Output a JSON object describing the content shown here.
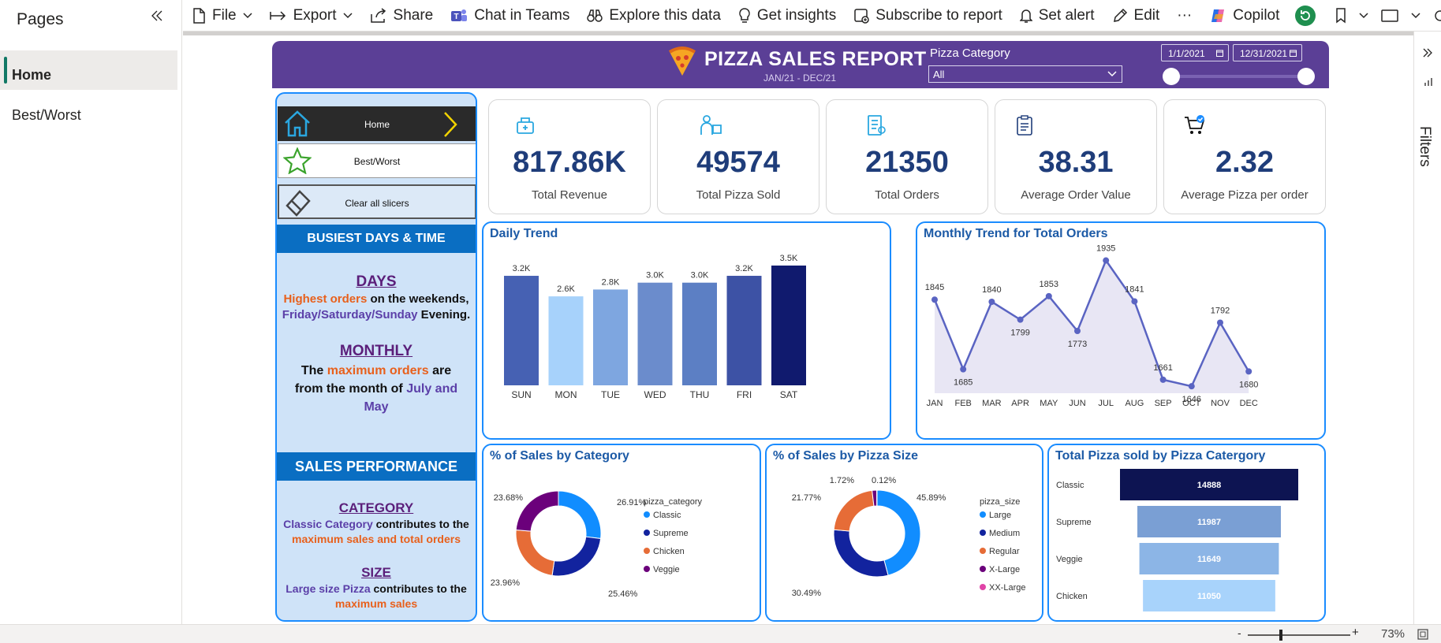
{
  "toolbar": {
    "file": "File",
    "export": "Export",
    "share": "Share",
    "chat": "Chat in Teams",
    "explore": "Explore this data",
    "insights": "Get insights",
    "subscribe": "Subscribe to report",
    "alert": "Set alert",
    "edit": "Edit",
    "more": "···",
    "copilot": "Copilot"
  },
  "pages": {
    "title": "Pages",
    "items": [
      {
        "label": "Home"
      },
      {
        "label": "Best/Worst"
      }
    ]
  },
  "filters": {
    "label": "Filters"
  },
  "status": {
    "zoom": "73%",
    "minus": "-",
    "plus": "+"
  },
  "report": {
    "title": "PIZZA SALES REPORT",
    "subtitle": "JAN/21 - DEC/21",
    "category_label": "Pizza Category",
    "category_value": "All",
    "date_start": "1/1/2021",
    "date_end": "12/31/2021"
  },
  "nav": {
    "home": "Home",
    "best": "Best/Worst",
    "clear": "Clear all slicers"
  },
  "notes": {
    "busiest_header": "BUSIEST DAYS & TIME",
    "days_heading": "DAYS",
    "days_l1a": "Highest orders",
    "days_l1b": " on the weekends,",
    "days_l2a": "Friday/Saturday/Sunday",
    "days_l2b": " Evening.",
    "monthly_heading": "MONTHLY",
    "monthly_l1a": "The ",
    "monthly_l1b": "maximum orders",
    "monthly_l1c": " are",
    "monthly_l2a": "from the month of ",
    "monthly_l2b": "July and",
    "monthly_l3": "May",
    ".": ".",
    "sales_header": "SALES PERFORMANCE",
    "category_heading": "CATEGORY",
    "cat_l1a": "Classic Category",
    "cat_l1b": " contributes to the",
    "cat_l2": "maximum sales and total orders",
    "size_heading": "SIZE",
    "size_l1a": "Large size Pizza",
    "size_l1b": " contributes to the",
    "size_l2": "maximum sales"
  },
  "kpis": [
    {
      "value": "817.86K",
      "label": "Total Revenue"
    },
    {
      "value": "49574",
      "label": "Total Pizza Sold"
    },
    {
      "value": "21350",
      "label": "Total Orders"
    },
    {
      "value": "38.31",
      "label": "Average Order Value"
    },
    {
      "value": "2.32",
      "label": "Average Pizza per order"
    }
  ],
  "colors": {
    "accent": "#5b3f96",
    "border": "#1a8cff",
    "navy": "#1f3d7a"
  },
  "chart_data": [
    {
      "id": "daily",
      "type": "bar",
      "title": "Daily Trend",
      "categories": [
        "SUN",
        "MON",
        "TUE",
        "WED",
        "THU",
        "FRI",
        "SAT"
      ],
      "values": [
        3.2,
        2.6,
        2.8,
        3.0,
        3.0,
        3.2,
        3.5
      ],
      "labels": [
        "3.2K",
        "2.6K",
        "2.8K",
        "3.0K",
        "3.0K",
        "3.2K",
        "3.5K"
      ],
      "colors": [
        "#4661b3",
        "#a7d2fb",
        "#7ea6e0",
        "#6b8ccc",
        "#5c7fc4",
        "#3d52a5",
        "#101a6e"
      ],
      "ylim": [
        0,
        3.5
      ]
    },
    {
      "id": "monthly",
      "type": "area",
      "title": "Monthly Trend for Total Orders",
      "categories": [
        "JAN",
        "FEB",
        "MAR",
        "APR",
        "MAY",
        "JUN",
        "JUL",
        "AUG",
        "SEP",
        "OCT",
        "NOV",
        "DEC"
      ],
      "values": [
        1845,
        1685,
        1840,
        1799,
        1853,
        1773,
        1935,
        1841,
        1661,
        1646,
        1792,
        1680
      ],
      "ylim": [
        1630,
        1945
      ]
    },
    {
      "id": "category",
      "type": "pie",
      "title": "% of Sales by Category",
      "legend_title": "pizza_category",
      "series": [
        {
          "name": "Classic",
          "value": 26.91,
          "label": "26.91%",
          "color": "#118dff"
        },
        {
          "name": "Supreme",
          "value": 25.46,
          "label": "25.46%",
          "color": "#12239e"
        },
        {
          "name": "Chicken",
          "value": 23.96,
          "label": "23.96%",
          "color": "#e66c37"
        },
        {
          "name": "Veggie",
          "value": 23.68,
          "label": "23.68%",
          "color": "#6b007b"
        }
      ]
    },
    {
      "id": "size",
      "type": "pie",
      "title": "% of Sales by Pizza Size",
      "legend_title": "pizza_size",
      "series": [
        {
          "name": "Large",
          "value": 45.89,
          "label": "45.89%",
          "color": "#118dff"
        },
        {
          "name": "Medium",
          "value": 30.49,
          "label": "30.49%",
          "color": "#12239e"
        },
        {
          "name": "Regular",
          "value": 21.77,
          "label": "21.77%",
          "color": "#e66c37"
        },
        {
          "name": "X-Large",
          "value": 1.72,
          "label": "1.72%",
          "color": "#6b007b"
        },
        {
          "name": "XX-Large",
          "value": 0.12,
          "label": "0.12%",
          "color": "#e044a7"
        }
      ]
    },
    {
      "id": "funnel",
      "type": "bar",
      "title": "Total Pizza sold by Pizza Catergory",
      "categories": [
        "Classic",
        "Supreme",
        "Veggie",
        "Chicken"
      ],
      "values": [
        14888,
        11987,
        11649,
        11050
      ],
      "labels": [
        "14888",
        "11987",
        "11649",
        "11050"
      ],
      "colors": [
        "#0d1452",
        "#7a9fd4",
        "#8cb5e6",
        "#a8d3fb"
      ],
      "xlim": [
        0,
        14888
      ]
    }
  ]
}
